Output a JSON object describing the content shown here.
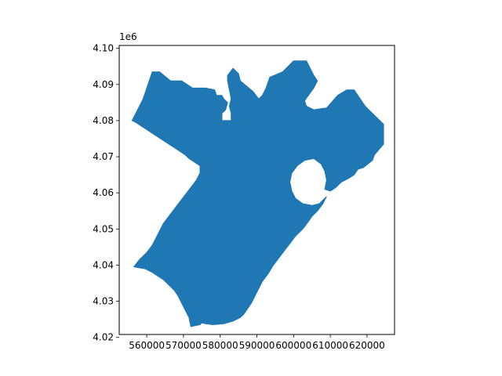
{
  "chart_data": {
    "type": "area",
    "title": "",
    "xlabel": "",
    "ylabel": "",
    "y_offset_label": "1e6",
    "xlim": [
      552500,
      627500
    ],
    "ylim": [
      4020800,
      4100800
    ],
    "x_ticks": [
      560000,
      570000,
      580000,
      590000,
      600000,
      610000,
      620000
    ],
    "x_tick_labels": [
      "560000",
      "570000",
      "580000",
      "590000",
      "600000",
      "610000",
      "620000"
    ],
    "y_ticks": [
      4.02,
      4.03,
      4.04,
      4.05,
      4.06,
      4.07,
      4.08,
      4.09,
      4.1
    ],
    "y_tick_labels": [
      "4.02",
      "4.03",
      "4.04",
      "4.05",
      "4.06",
      "4.07",
      "4.08",
      "4.09",
      "4.10"
    ],
    "grid": false,
    "fill_color": "#1f77b4",
    "series": [
      {
        "outline": [
          [
            556000,
            4080000
          ],
          [
            559000,
            4086000
          ],
          [
            561500,
            4093500
          ],
          [
            563500,
            4093500
          ],
          [
            566500,
            4091000
          ],
          [
            569500,
            4091000
          ],
          [
            572500,
            4089000
          ],
          [
            576000,
            4089000
          ],
          [
            578500,
            4088500
          ],
          [
            579000,
            4087000
          ],
          [
            580500,
            4087000
          ],
          [
            581000,
            4086000
          ],
          [
            582000,
            4085000
          ],
          [
            581500,
            4083000
          ],
          [
            580500,
            4082000
          ],
          [
            580500,
            4080000
          ],
          [
            583000,
            4080000
          ],
          [
            583000,
            4082000
          ],
          [
            582500,
            4084000
          ],
          [
            583000,
            4086000
          ],
          [
            582500,
            4088500
          ],
          [
            582000,
            4091000
          ],
          [
            582000,
            4092500
          ],
          [
            583500,
            4094500
          ],
          [
            585000,
            4093000
          ],
          [
            585500,
            4091000
          ],
          [
            589000,
            4088000
          ],
          [
            590500,
            4086000
          ],
          [
            591500,
            4087000
          ],
          [
            592500,
            4089000
          ],
          [
            593500,
            4092000
          ],
          [
            597000,
            4093500
          ],
          [
            600000,
            4096500
          ],
          [
            603500,
            4096500
          ],
          [
            605500,
            4092500
          ],
          [
            606500,
            4091000
          ],
          [
            605500,
            4089000
          ],
          [
            603000,
            4085500
          ],
          [
            603500,
            4084000
          ],
          [
            605500,
            4083000
          ],
          [
            609000,
            4083500
          ],
          [
            612000,
            4087000
          ],
          [
            614500,
            4088500
          ],
          [
            616500,
            4088500
          ],
          [
            617500,
            4087000
          ],
          [
            618500,
            4085500
          ],
          [
            619500,
            4084000
          ],
          [
            620500,
            4083000
          ],
          [
            622500,
            4081000
          ],
          [
            624500,
            4079000
          ],
          [
            624500,
            4073500
          ],
          [
            622000,
            4070500
          ],
          [
            621500,
            4069000
          ],
          [
            619000,
            4067000
          ],
          [
            617500,
            4066500
          ],
          [
            616500,
            4065000
          ],
          [
            615000,
            4064000
          ],
          [
            613000,
            4063000
          ],
          [
            611500,
            4061500
          ],
          [
            610000,
            4060500
          ],
          [
            608500,
            4061000
          ],
          [
            609000,
            4063500
          ],
          [
            608500,
            4066000
          ],
          [
            607500,
            4068000
          ],
          [
            605500,
            4069500
          ],
          [
            603000,
            4069000
          ],
          [
            601000,
            4067500
          ],
          [
            599500,
            4065500
          ],
          [
            599000,
            4063000
          ],
          [
            599500,
            4060500
          ],
          [
            600500,
            4058500
          ],
          [
            602500,
            4057000
          ],
          [
            605000,
            4056500
          ],
          [
            607000,
            4057000
          ],
          [
            608000,
            4058000
          ],
          [
            609000,
            4059000
          ],
          [
            608000,
            4057000
          ],
          [
            606500,
            4055000
          ],
          [
            605000,
            4053500
          ],
          [
            604000,
            4052000
          ],
          [
            602500,
            4050000
          ],
          [
            600500,
            4048000
          ],
          [
            599000,
            4046000
          ],
          [
            597500,
            4044000
          ],
          [
            596000,
            4042000
          ],
          [
            594500,
            4040000
          ],
          [
            593000,
            4037500
          ],
          [
            591500,
            4035500
          ],
          [
            590500,
            4033500
          ],
          [
            589500,
            4031500
          ],
          [
            588500,
            4029500
          ],
          [
            587500,
            4028000
          ],
          [
            586500,
            4026500
          ],
          [
            585500,
            4025500
          ],
          [
            583500,
            4024500
          ],
          [
            581000,
            4023800
          ],
          [
            578000,
            4023500
          ],
          [
            576000,
            4023800
          ],
          [
            575000,
            4024000
          ],
          [
            574500,
            4023500
          ],
          [
            572000,
            4023000
          ],
          [
            571500,
            4025500
          ],
          [
            570500,
            4027500
          ],
          [
            569500,
            4029500
          ],
          [
            568500,
            4031500
          ],
          [
            567500,
            4033000
          ],
          [
            566000,
            4034500
          ],
          [
            564500,
            4036000
          ],
          [
            563000,
            4037000
          ],
          [
            561500,
            4038000
          ],
          [
            559500,
            4039000
          ],
          [
            556500,
            4039500
          ],
          [
            558000,
            4041500
          ],
          [
            560000,
            4043500
          ],
          [
            561500,
            4045500
          ],
          [
            562500,
            4047500
          ],
          [
            563500,
            4049500
          ],
          [
            564500,
            4051500
          ],
          [
            566000,
            4053500
          ],
          [
            567500,
            4055500
          ],
          [
            569000,
            4057500
          ],
          [
            570500,
            4059500
          ],
          [
            572000,
            4061500
          ],
          [
            573500,
            4063500
          ],
          [
            574500,
            4065500
          ],
          [
            574500,
            4067500
          ],
          [
            573000,
            4068500
          ],
          [
            571500,
            4069500
          ],
          [
            570500,
            4070500
          ],
          [
            569000,
            4071500
          ],
          [
            567500,
            4072500
          ],
          [
            566000,
            4073500
          ],
          [
            564500,
            4074500
          ],
          [
            563000,
            4075500
          ],
          [
            561500,
            4076500
          ],
          [
            560000,
            4077500
          ],
          [
            558500,
            4078500
          ],
          [
            557000,
            4079500
          ]
        ]
      }
    ]
  }
}
